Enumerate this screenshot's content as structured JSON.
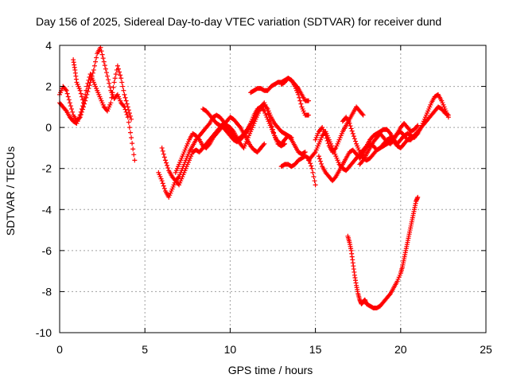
{
  "chart_data": {
    "type": "scatter",
    "title": "Day 156 of 2025, Sidereal Day-to-day VTEC variation (SDTVAR) for receiver dund",
    "xlabel": "GPS time / hours",
    "ylabel": "SDTVAR / TECUs",
    "xlim": [
      0,
      25
    ],
    "ylim": [
      -10,
      4
    ],
    "xticks": [
      0,
      5,
      10,
      15,
      20,
      25
    ],
    "yticks": [
      -10,
      -8,
      -6,
      -4,
      -2,
      0,
      2,
      4
    ],
    "xtick_labels": [
      "0",
      "5",
      "10",
      "15",
      "20",
      "25"
    ],
    "ytick_labels": [
      "-10",
      "-8",
      "-6",
      "-4",
      "-2",
      "0",
      "2",
      "4"
    ],
    "grid": true,
    "marker": "plus",
    "color": "#ff0000",
    "series": [
      {
        "x": [
          0.0,
          0.2,
          0.4,
          0.6,
          0.8,
          1.0,
          1.2,
          1.4,
          1.6,
          1.8,
          2.0,
          2.2,
          2.4,
          2.6,
          2.8,
          3.0,
          3.2,
          3.4,
          3.6,
          3.8,
          4.0,
          4.2,
          4.4
        ],
        "y": [
          1.6,
          2.0,
          1.8,
          1.2,
          0.6,
          0.3,
          0.5,
          1.0,
          1.6,
          2.2,
          2.8,
          3.6,
          3.9,
          3.2,
          2.5,
          1.8,
          1.4,
          1.6,
          1.2,
          1.0,
          0.5,
          -0.5,
          -1.6
        ]
      },
      {
        "x": [
          0.0,
          0.2,
          0.4,
          0.6,
          0.8,
          1.0,
          1.2,
          1.4,
          1.6,
          1.8,
          2.0,
          2.2,
          2.4,
          2.6,
          2.8,
          3.0,
          3.2,
          3.4,
          3.6,
          3.8,
          4.0,
          4.2
        ],
        "y": [
          1.2,
          1.0,
          0.8,
          0.5,
          0.3,
          0.2,
          0.6,
          1.2,
          2.0,
          2.6,
          2.2,
          1.8,
          1.4,
          1.0,
          0.8,
          1.2,
          2.2,
          3.0,
          2.4,
          1.6,
          1.0,
          0.4
        ]
      },
      {
        "x": [
          0.8,
          0.9,
          1.0,
          1.2,
          1.4
        ],
        "y": [
          3.3,
          2.8,
          2.2,
          1.8,
          1.2
        ]
      },
      {
        "x": [
          5.8,
          6.0,
          6.2,
          6.4,
          6.6,
          6.8,
          7.0,
          7.2,
          7.4,
          7.6,
          7.8,
          8.0,
          8.2,
          8.4,
          8.6,
          8.8,
          9.0,
          9.2,
          9.4,
          9.6,
          9.8,
          10.0,
          10.2,
          10.4,
          10.6,
          10.8,
          11.0,
          11.2,
          11.4,
          11.6,
          11.8,
          12.0,
          12.2,
          12.4,
          12.6,
          12.8,
          13.0,
          13.2
        ],
        "y": [
          -2.2,
          -2.6,
          -3.1,
          -3.4,
          -3.0,
          -2.6,
          -2.4,
          -2.0,
          -1.6,
          -1.2,
          -0.9,
          -0.6,
          -0.4,
          -0.2,
          0.0,
          0.2,
          0.5,
          0.6,
          0.5,
          0.3,
          0.1,
          0.0,
          -0.2,
          -0.5,
          -0.8,
          -1.0,
          -0.6,
          -0.2,
          0.2,
          0.6,
          1.0,
          1.2,
          0.8,
          0.2,
          -0.4,
          -0.8,
          -0.9,
          -0.8
        ]
      },
      {
        "x": [
          6.0,
          6.2,
          6.4,
          6.6,
          6.8,
          7.0,
          7.2,
          7.4,
          7.6,
          7.8,
          8.0,
          8.2,
          8.4,
          8.6,
          8.8,
          9.0,
          9.2,
          9.4,
          9.6,
          9.8,
          10.0,
          10.2,
          10.4,
          10.6,
          10.8,
          11.0,
          11.2,
          11.4,
          11.6,
          11.8,
          12.0,
          12.2,
          12.4,
          12.6,
          12.8,
          13.0,
          13.2,
          13.4,
          13.6,
          13.8,
          14.0,
          14.2,
          14.4
        ],
        "y": [
          -1.0,
          -1.6,
          -2.1,
          -2.4,
          -2.6,
          -2.8,
          -2.4,
          -2.0,
          -1.6,
          -1.2,
          -1.1,
          -1.2,
          -1.0,
          -0.8,
          -0.6,
          -0.4,
          -0.2,
          0.0,
          0.2,
          0.0,
          -0.2,
          -0.4,
          -0.6,
          -0.5,
          -0.3,
          -0.1,
          0.2,
          0.6,
          0.9,
          1.0,
          0.8,
          0.4,
          0.0,
          -0.4,
          -0.7,
          -0.8,
          -0.6,
          -0.4,
          -0.6,
          -0.9,
          -1.2,
          -1.3,
          -1.2
        ]
      },
      {
        "x": [
          6.8,
          7.0,
          7.2,
          7.4,
          7.6,
          7.8,
          8.0,
          8.2,
          8.4,
          8.6,
          8.8,
          9.0,
          9.2,
          9.4,
          9.6,
          9.8,
          10.0,
          10.2,
          10.4,
          10.6,
          10.8,
          11.0,
          11.2,
          11.4,
          11.6,
          11.8,
          12.0
        ],
        "y": [
          -2.2,
          -1.8,
          -1.4,
          -1.0,
          -0.6,
          -0.3,
          -0.4,
          -0.6,
          -0.9,
          -1.0,
          -0.8,
          -0.5,
          -0.3,
          -0.1,
          0.1,
          0.3,
          0.5,
          0.4,
          0.2,
          0.0,
          -0.3,
          -0.6,
          -0.9,
          -1.1,
          -1.2,
          -1.0,
          -0.8
        ]
      },
      {
        "x": [
          8.4,
          8.6,
          8.8,
          9.0,
          9.2,
          9.4,
          9.6,
          9.8,
          10.0,
          10.2,
          10.4,
          10.6,
          10.8,
          11.0,
          11.2,
          11.4,
          11.6,
          11.8,
          12.0,
          12.2,
          12.4,
          12.6,
          12.8,
          13.0,
          13.2,
          13.4,
          13.6
        ],
        "y": [
          0.9,
          0.8,
          0.6,
          0.4,
          0.2,
          0.1,
          0.0,
          -0.2,
          -0.4,
          -0.6,
          -0.7,
          -0.6,
          -0.4,
          -0.2,
          0.1,
          0.4,
          0.7,
          1.0,
          1.1,
          0.9,
          0.5,
          0.2,
          0.0,
          -0.2,
          -0.3,
          -0.4,
          -0.5
        ]
      },
      {
        "x": [
          11.2,
          11.4,
          11.6,
          11.8,
          12.0,
          12.2,
          12.4,
          12.6,
          12.8,
          13.0,
          13.2,
          13.4,
          13.6,
          13.8,
          14.0,
          14.2,
          14.4,
          14.6
        ],
        "y": [
          1.7,
          1.8,
          1.9,
          1.9,
          1.8,
          1.8,
          2.0,
          2.1,
          2.2,
          2.2,
          2.3,
          2.4,
          2.3,
          2.1,
          1.9,
          1.6,
          1.3,
          1.3
        ]
      },
      {
        "x": [
          13.0,
          13.2,
          13.4,
          13.6,
          13.8,
          14.0,
          14.2,
          14.4,
          14.6
        ],
        "y": [
          2.1,
          2.2,
          2.4,
          2.3,
          2.0,
          1.6,
          1.0,
          0.6,
          0.6
        ]
      },
      {
        "x": [
          13.0,
          13.2,
          13.4,
          13.6,
          13.8,
          14.0,
          14.2,
          14.4,
          14.6,
          14.8,
          15.0
        ],
        "y": [
          -1.9,
          -1.8,
          -1.8,
          -1.9,
          -1.8,
          -1.6,
          -1.5,
          -1.4,
          -1.5,
          -2.0,
          -2.8
        ]
      },
      {
        "x": [
          14.6,
          14.8,
          15.0,
          15.2,
          15.4,
          15.6,
          15.8,
          16.0,
          16.2,
          16.4,
          16.6,
          16.8,
          17.0,
          17.2,
          17.4,
          17.6,
          17.8,
          18.0,
          18.2,
          18.4,
          18.6,
          18.8,
          19.0,
          19.2,
          19.4,
          19.6,
          19.8,
          20.0,
          20.2,
          20.4,
          20.6,
          20.8,
          21.0,
          21.2,
          21.4,
          21.6,
          21.8,
          22.0,
          22.2,
          22.4,
          22.6,
          22.8
        ],
        "y": [
          -1.6,
          -1.4,
          -1.2,
          -0.8,
          -0.4,
          -0.2,
          -0.6,
          -1.0,
          -1.4,
          -1.8,
          -2.0,
          -2.1,
          -1.9,
          -1.7,
          -1.5,
          -1.3,
          -1.1,
          -0.9,
          -0.6,
          -0.4,
          -0.3,
          -0.2,
          -0.1,
          -0.1,
          -0.3,
          -0.6,
          -0.8,
          -0.6,
          -0.4,
          -0.3,
          -0.4,
          -0.5,
          -0.3,
          0.0,
          0.4,
          0.8,
          1.2,
          1.5,
          1.6,
          1.3,
          0.9,
          0.5
        ]
      },
      {
        "x": [
          15.2,
          15.4,
          15.6,
          15.8,
          16.0,
          16.2,
          16.4,
          16.6,
          16.8,
          17.0,
          17.2,
          17.4,
          17.6,
          17.8,
          18.0,
          18.2,
          18.4,
          18.6,
          18.8,
          19.0,
          19.2,
          19.4,
          19.6,
          19.8,
          20.0,
          20.2,
          20.4,
          20.6,
          20.8,
          21.0,
          21.2,
          21.4,
          21.6,
          21.8,
          22.0,
          22.2,
          22.4,
          22.6,
          22.8
        ],
        "y": [
          -1.4,
          -1.9,
          -2.2,
          -2.4,
          -2.6,
          -2.4,
          -2.1,
          -1.8,
          -1.5,
          -1.2,
          -1.1,
          -1.3,
          -1.5,
          -1.3,
          -1.0,
          -0.8,
          -0.9,
          -1.1,
          -1.0,
          -0.8,
          -0.6,
          -0.5,
          -0.7,
          -0.9,
          -1.0,
          -0.8,
          -0.6,
          -0.6,
          -0.4,
          -0.2,
          0.0,
          0.2,
          0.4,
          0.6,
          0.8,
          1.0,
          0.9,
          0.7,
          0.6
        ]
      },
      {
        "x": [
          15.0,
          15.2,
          15.4,
          15.6,
          15.8,
          16.0,
          16.2,
          16.4,
          16.6,
          16.8,
          17.0,
          17.2,
          17.4,
          17.6,
          17.8
        ],
        "y": [
          -0.6,
          -0.2,
          0.0,
          -0.4,
          -0.9,
          -1.2,
          -1.0,
          -0.6,
          -0.2,
          0.1,
          0.4,
          0.7,
          1.0,
          0.8,
          0.6
        ]
      },
      {
        "x": [
          17.6,
          17.8,
          18.0,
          18.2,
          18.4,
          18.6,
          18.8,
          19.0,
          19.2,
          19.4,
          19.6,
          19.8,
          20.0,
          20.2,
          20.4,
          20.6,
          20.8,
          21.0
        ],
        "y": [
          -1.8,
          -1.6,
          -1.3,
          -1.0,
          -0.7,
          -0.5,
          -0.3,
          -0.5,
          -0.7,
          -0.8,
          -0.6,
          -0.3,
          0.0,
          0.2,
          0.0,
          -0.2,
          -0.1,
          0.1
        ]
      },
      {
        "x": [
          16.6,
          16.8,
          17.0,
          17.2,
          17.4,
          17.6,
          17.8,
          18.0,
          18.2,
          18.4,
          18.6,
          18.8,
          19.0,
          19.2,
          19.4,
          19.6,
          19.8,
          20.0,
          20.2,
          20.4,
          20.6,
          20.8,
          21.0
        ],
        "y": [
          0.3,
          0.5,
          0.2,
          -0.3,
          -0.8,
          -1.2,
          -1.5,
          -1.6,
          -1.5,
          -1.3,
          -1.1,
          -1.0,
          -0.9,
          -0.8,
          -0.7,
          -0.5,
          -0.3,
          -0.2,
          -0.4,
          -0.6,
          -0.5,
          -0.4,
          -0.3
        ]
      },
      {
        "x": [
          16.9,
          17.0,
          17.1,
          17.2,
          17.3,
          17.4,
          17.5,
          17.6,
          17.7,
          17.8,
          17.9,
          18.0,
          18.2,
          18.4,
          18.6,
          18.8,
          19.0,
          19.2,
          19.4,
          19.6,
          19.8,
          20.0,
          20.1,
          20.2,
          20.3,
          20.4,
          20.5,
          20.6,
          20.7,
          20.8,
          20.9,
          21.0
        ],
        "y": [
          -5.3,
          -5.6,
          -6.0,
          -6.6,
          -7.2,
          -7.7,
          -8.1,
          -8.4,
          -8.6,
          -8.5,
          -8.4,
          -8.6,
          -8.7,
          -8.8,
          -8.8,
          -8.7,
          -8.5,
          -8.3,
          -8.1,
          -7.8,
          -7.5,
          -7.1,
          -6.8,
          -6.4,
          -6.0,
          -5.6,
          -5.2,
          -4.8,
          -4.4,
          -4.0,
          -3.6,
          -3.4
        ]
      }
    ]
  }
}
